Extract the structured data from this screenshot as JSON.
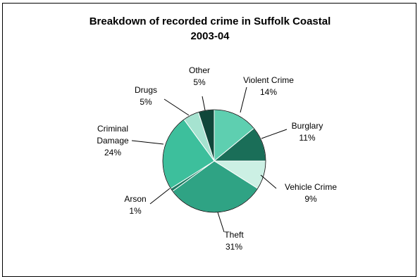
{
  "chart_data": {
    "type": "pie",
    "title_lines": [
      "Breakdown of recorded crime in Suffolk Coastal",
      "2003-04"
    ],
    "unit": "%",
    "slices": [
      {
        "label": "Violent Crime",
        "value": 14,
        "color": "#5ecfb0"
      },
      {
        "label": "Burglary",
        "value": 11,
        "color": "#1a6e58"
      },
      {
        "label": "Vehicle Crime",
        "value": 9,
        "color": "#ccf0e4"
      },
      {
        "label": "Theft",
        "value": 31,
        "color": "#2fa384"
      },
      {
        "label": "Arson",
        "value": 1,
        "color": "#1e7a62"
      },
      {
        "label": "Criminal Damage",
        "value": 24,
        "color": "#3dbf9c"
      },
      {
        "label": "Drugs",
        "value": 5,
        "color": "#a6e3d0"
      },
      {
        "label": "Other",
        "value": 5,
        "color": "#10473a"
      }
    ]
  }
}
